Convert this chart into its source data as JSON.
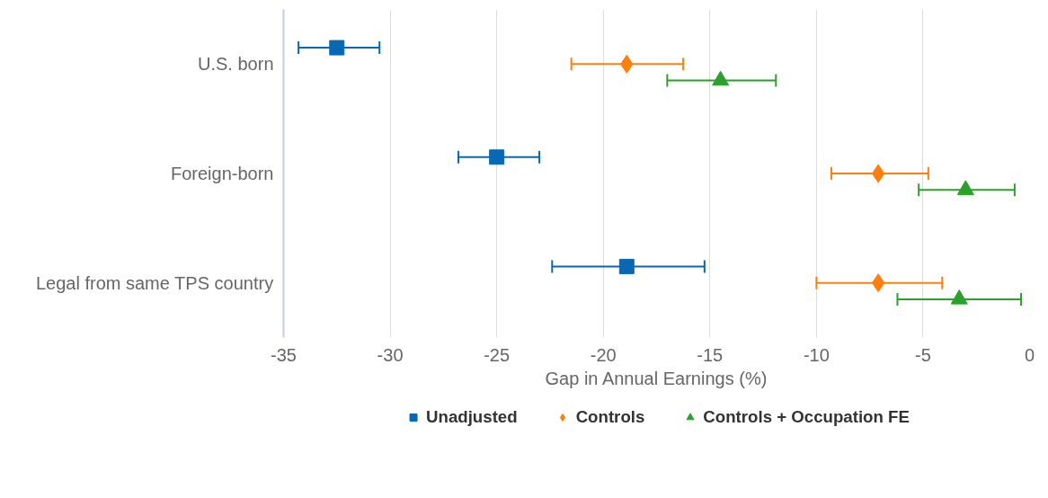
{
  "chart_data": {
    "type": "scatter",
    "orientation": "horizontal",
    "xlabel": "Gap in Annual Earnings (%)",
    "categories": [
      "U.S. born",
      "Foreign-born",
      "Legal from same TPS country"
    ],
    "series": [
      {
        "name": "Unadjusted",
        "color": "#0868b4",
        "marker": "square",
        "values": [
          -32.5,
          -25.0,
          -18.9
        ],
        "errors": [
          [
            -34.3,
            -30.5
          ],
          [
            -26.8,
            -23.0
          ],
          [
            -22.4,
            -15.25
          ]
        ]
      },
      {
        "name": "Controls",
        "color": "#ff7f0e",
        "marker": "diamond",
        "values": [
          -18.9,
          -7.1,
          -7.1
        ],
        "errors": [
          [
            -21.5,
            -16.25
          ],
          [
            -9.3,
            -4.75
          ],
          [
            -10.0,
            -4.1
          ]
        ]
      },
      {
        "name": "Controls + Occupation FE",
        "color": "#2ca02c",
        "marker": "triangle",
        "values": [
          -14.5,
          -3.0,
          -3.3
        ],
        "errors": [
          [
            -17.0,
            -11.9
          ],
          [
            -5.2,
            -0.7
          ],
          [
            -6.2,
            -0.4
          ]
        ]
      }
    ],
    "xlim": [
      -35,
      0
    ],
    "xticks": [
      -35,
      -30,
      -25,
      -20,
      -15,
      -10,
      -5,
      0
    ],
    "grid": "x",
    "legend": "bottom"
  }
}
